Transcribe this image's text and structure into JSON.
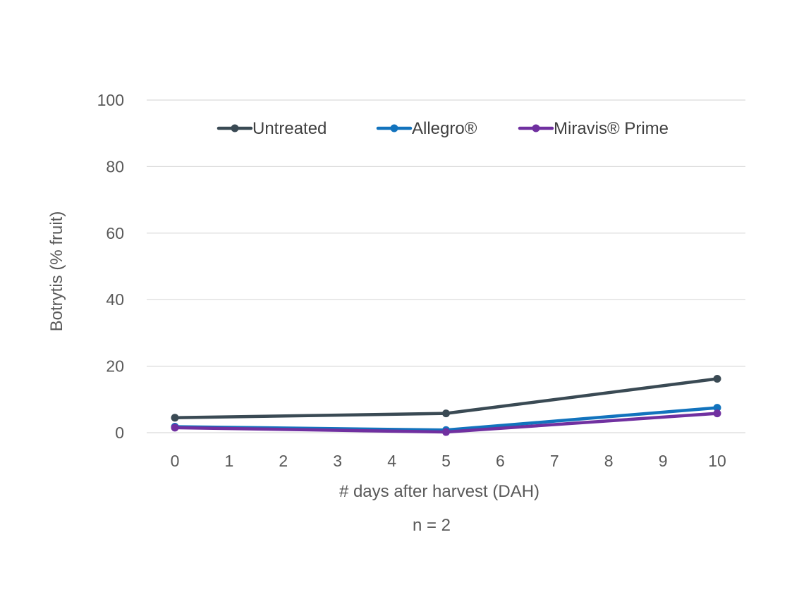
{
  "chart_data": {
    "type": "line",
    "title": "",
    "xlabel": "# days after harvest (DAH)",
    "ylabel": "Botrytis (% fruit)",
    "note": "n = 2",
    "xlim": [
      0,
      10
    ],
    "ylim": [
      0,
      100
    ],
    "x_ticks": [
      "0",
      "1",
      "2",
      "3",
      "4",
      "5",
      "6",
      "7",
      "8",
      "9",
      "10"
    ],
    "y_ticks": [
      "0",
      "20",
      "40",
      "60",
      "80",
      "100"
    ],
    "grid": true,
    "legend_position": "top",
    "series": [
      {
        "name": "Untreated",
        "color": "#3a4a54",
        "x": [
          0,
          5,
          10
        ],
        "y": [
          4.5,
          5.8,
          16.2
        ]
      },
      {
        "name": "Allegro®",
        "color": "#1273bd",
        "x": [
          0,
          5,
          10
        ],
        "y": [
          1.8,
          0.8,
          7.5
        ]
      },
      {
        "name": "Miravis® Prime",
        "color": "#7030a0",
        "x": [
          0,
          5,
          10
        ],
        "y": [
          1.5,
          0.2,
          5.8
        ]
      }
    ]
  }
}
